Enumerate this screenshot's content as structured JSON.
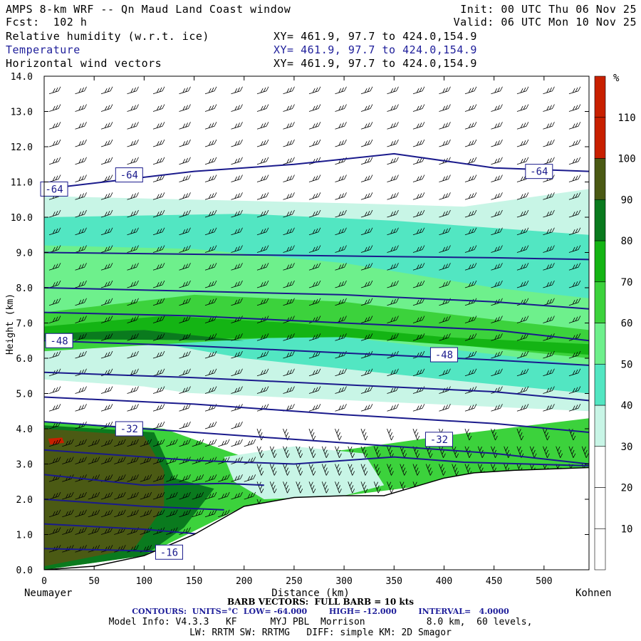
{
  "header": {
    "title": "AMPS 8-km WRF -- Qn Maud Land Coast window",
    "forecast": "Fcst:  102 h",
    "init": "Init: 00 UTC Thu 06 Nov 25",
    "valid": "Valid: 06 UTC Mon 10 Nov 25",
    "fields": [
      {
        "name": "Relative humidity (w.r.t. ice)",
        "xy": "XY= 461.9, 97.7 to 424.0,154.9"
      },
      {
        "name": "Temperature",
        "xy": "XY= 461.9, 97.7 to 424.0,154.9"
      },
      {
        "name": "Horizontal wind vectors",
        "xy": "XY= 461.9, 97.7 to 424.0,154.9"
      }
    ]
  },
  "chart_data": {
    "type": "heatmap",
    "xlabel": "Distance (km)",
    "ylabel": "Height (km)",
    "xlim": [
      0,
      545
    ],
    "ylim": [
      0,
      14
    ],
    "xticks": [
      0,
      50,
      100,
      150,
      200,
      250,
      300,
      350,
      400,
      450,
      500
    ],
    "yticks": [
      "0.0",
      "1.0",
      "2.0",
      "3.0",
      "4.0",
      "5.0",
      "6.0",
      "7.0",
      "8.0",
      "9.0",
      "10.0",
      "11.0",
      "12.0",
      "13.0",
      "14.0"
    ],
    "left_endpoint": "Neumayer",
    "right_endpoint": "Kohnen",
    "colorbar": {
      "unit": "%",
      "levels": [
        "10",
        "20",
        "30",
        "40",
        "50",
        "60",
        "70",
        "80",
        "90",
        "100",
        "110"
      ],
      "colors": [
        "#ffffff",
        "#ffffff",
        "#ffffff",
        "#c8f5e6",
        "#52e6c2",
        "#6ef08c",
        "#3cd23c",
        "#14b414",
        "#0a7a1e",
        "#4b5a14",
        "#c82000"
      ]
    },
    "terrain": [
      [
        0,
        0
      ],
      [
        50,
        0.1
      ],
      [
        100,
        0.4
      ],
      [
        150,
        1.0
      ],
      [
        200,
        1.8
      ],
      [
        250,
        2.05
      ],
      [
        300,
        2.1
      ],
      [
        340,
        2.1
      ],
      [
        370,
        2.35
      ],
      [
        400,
        2.6
      ],
      [
        430,
        2.75
      ],
      [
        470,
        2.82
      ],
      [
        545,
        2.9
      ]
    ],
    "temperature_contours": [
      {
        "value": -64,
        "points": [
          [
            0,
            10.8
          ],
          [
            60,
            11.0
          ],
          [
            150,
            11.3
          ],
          [
            250,
            11.5
          ],
          [
            350,
            11.8
          ],
          [
            450,
            11.4
          ],
          [
            545,
            11.3
          ]
        ]
      },
      {
        "value": -60,
        "points": [
          [
            0,
            9.0
          ],
          [
            150,
            8.95
          ],
          [
            300,
            8.9
          ],
          [
            450,
            8.85
          ],
          [
            545,
            8.8
          ]
        ]
      },
      {
        "value": -56,
        "points": [
          [
            0,
            8.0
          ],
          [
            150,
            7.9
          ],
          [
            300,
            7.8
          ],
          [
            450,
            7.6
          ],
          [
            545,
            7.4
          ]
        ]
      },
      {
        "value": -52,
        "points": [
          [
            0,
            7.3
          ],
          [
            150,
            7.2
          ],
          [
            300,
            7.0
          ],
          [
            450,
            6.8
          ],
          [
            545,
            6.5
          ]
        ]
      },
      {
        "value": -48,
        "points": [
          [
            0,
            6.5
          ],
          [
            150,
            6.35
          ],
          [
            300,
            6.15
          ],
          [
            450,
            5.95
          ],
          [
            545,
            5.8
          ]
        ]
      },
      {
        "value": -44,
        "points": [
          [
            0,
            5.6
          ],
          [
            150,
            5.45
          ],
          [
            300,
            5.25
          ],
          [
            450,
            5.05
          ],
          [
            545,
            4.8
          ]
        ]
      },
      {
        "value": -40,
        "points": [
          [
            0,
            4.9
          ],
          [
            150,
            4.7
          ],
          [
            300,
            4.4
          ],
          [
            450,
            4.15
          ],
          [
            545,
            3.9
          ]
        ]
      },
      {
        "value": -36,
        "points": [
          [
            0,
            4.2
          ],
          [
            150,
            3.9
          ],
          [
            300,
            3.6
          ],
          [
            450,
            3.3
          ],
          [
            545,
            3.0
          ]
        ]
      },
      {
        "value": -32,
        "points": [
          [
            0,
            3.4
          ],
          [
            150,
            3.1
          ],
          [
            250,
            3.0
          ],
          [
            350,
            3.2
          ],
          [
            420,
            3.05
          ],
          [
            545,
            2.95
          ]
        ]
      },
      {
        "value": -28,
        "points": [
          [
            0,
            2.7
          ],
          [
            100,
            2.4
          ],
          [
            180,
            2.45
          ],
          [
            220,
            2.4
          ]
        ]
      },
      {
        "value": -24,
        "points": [
          [
            0,
            2.0
          ],
          [
            100,
            1.8
          ],
          [
            180,
            1.7
          ]
        ]
      },
      {
        "value": -20,
        "points": [
          [
            0,
            1.3
          ],
          [
            100,
            1.15
          ],
          [
            160,
            1.0
          ]
        ]
      },
      {
        "value": -16,
        "points": [
          [
            0,
            0.6
          ],
          [
            80,
            0.55
          ],
          [
            130,
            0.5
          ]
        ]
      }
    ],
    "contour_labels": [
      {
        "text": "-64",
        "x": 85,
        "y": 11.2
      },
      {
        "text": "-64",
        "x": 10,
        "y": 10.8
      },
      {
        "text": "-64",
        "x": 495,
        "y": 11.3
      },
      {
        "text": "-48",
        "x": 15,
        "y": 6.5
      },
      {
        "text": "-48",
        "x": 400,
        "y": 6.1
      },
      {
        "text": "-32",
        "x": 85,
        "y": 4.0
      },
      {
        "text": "-32",
        "x": 395,
        "y": 3.7
      },
      {
        "text": "-16",
        "x": 125,
        "y": 0.5
      }
    ]
  },
  "footer": {
    "barb_label": "BARB VECTORS:  FULL BARB = 10 kts",
    "contours_label": "CONTOURS:  UNITS=°C  LOW= -64.000        HIGH= -12.000        INTERVAL=   4.0000",
    "model_info": "Model Info: V4.3.3   KF      MYJ PBL  Morrison           8.0 km,  60 levels,",
    "physics": "LW: RRTM SW: RRTMG   DIFF: simple KM: 2D Smagor"
  },
  "colors": {
    "contour": "#1a1a8c",
    "label_box": "#1a1a8c",
    "blue_text": "#1e1e9a"
  }
}
